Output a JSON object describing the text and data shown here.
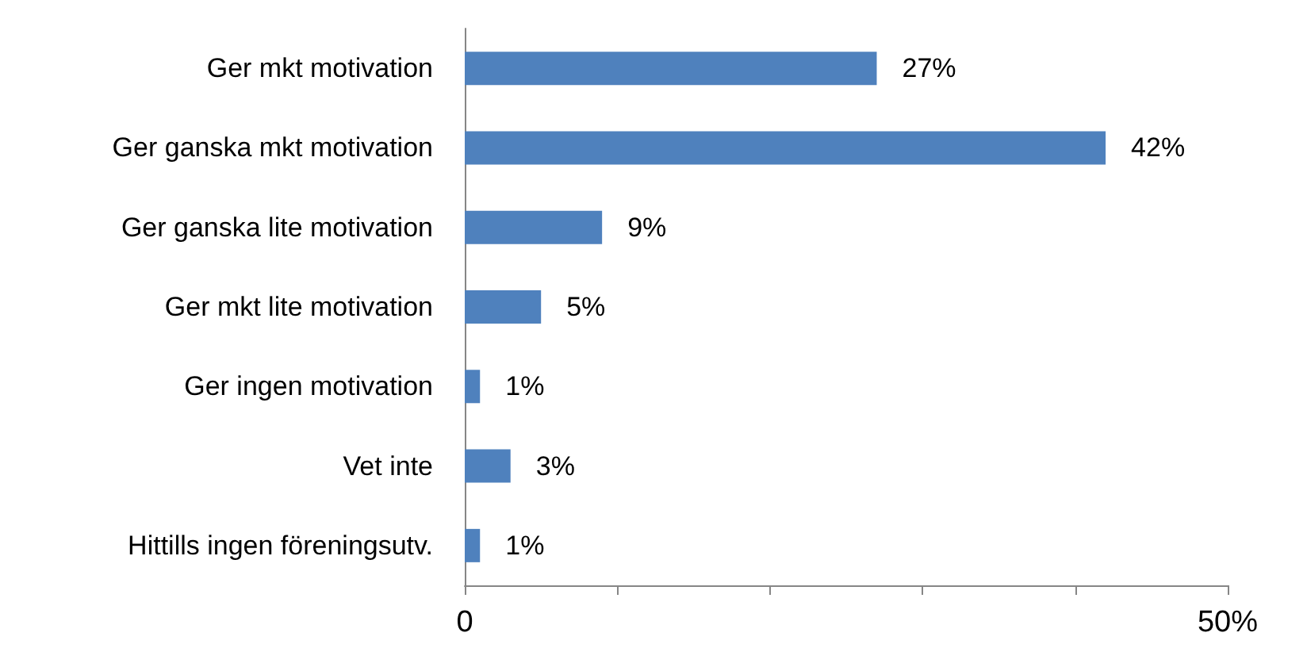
{
  "chart_data": {
    "type": "bar",
    "orientation": "horizontal",
    "categories": [
      "Ger mkt motivation",
      "Ger ganska mkt motivation",
      "Ger ganska lite motivation",
      "Ger mkt lite motivation",
      "Ger ingen motivation",
      "Vet inte",
      "Hittills ingen föreningsutv."
    ],
    "values": [
      27,
      42,
      9,
      5,
      1,
      3,
      1
    ],
    "value_labels": [
      "27%",
      "42%",
      "9%",
      "5%",
      "1%",
      "3%",
      "1%"
    ],
    "color": "#4f81bd",
    "xlim": [
      0,
      50
    ],
    "xticks": [
      0,
      {
        "value": 10,
        "label": null
      },
      {
        "value": 20,
        "label": null
      },
      {
        "value": 30,
        "label": null
      },
      {
        "value": 40,
        "label": null
      },
      {
        "value": 50,
        "label": "50%"
      }
    ],
    "grid": false
  }
}
